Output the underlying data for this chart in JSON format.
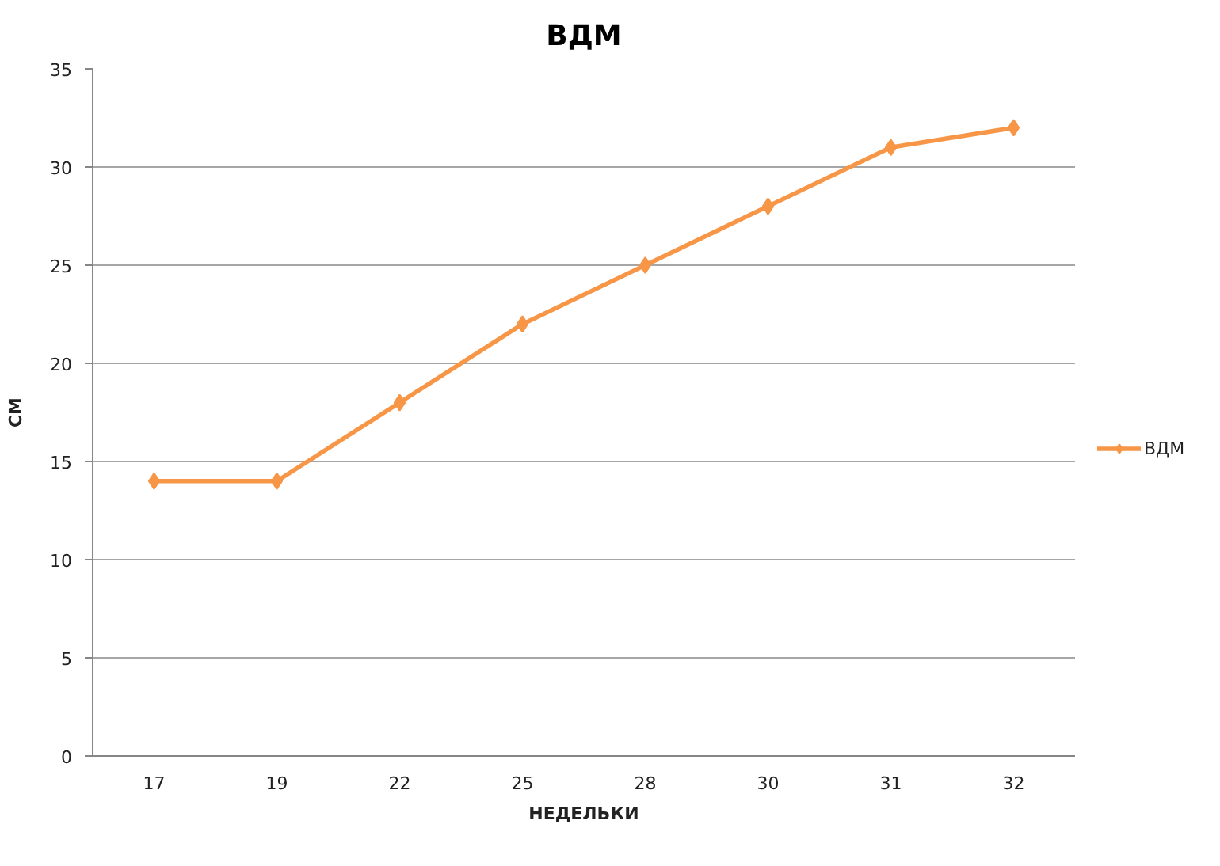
{
  "chart_data": {
    "type": "line",
    "title": "ВДМ",
    "xlabel": "НЕДЕЛЬКИ",
    "ylabel": "СМ",
    "categories": [
      "17",
      "19",
      "22",
      "25",
      "28",
      "30",
      "31",
      "32"
    ],
    "series": [
      {
        "name": "ВДМ",
        "color": "#f79646",
        "values": [
          14,
          14,
          18,
          22,
          25,
          28,
          31,
          32
        ]
      }
    ],
    "ylim": [
      0,
      35
    ],
    "yticks": [
      0,
      5,
      10,
      15,
      20,
      25,
      30,
      35
    ],
    "grid": "y",
    "legend": "right",
    "marker": "diamond",
    "line_style": "solid"
  }
}
